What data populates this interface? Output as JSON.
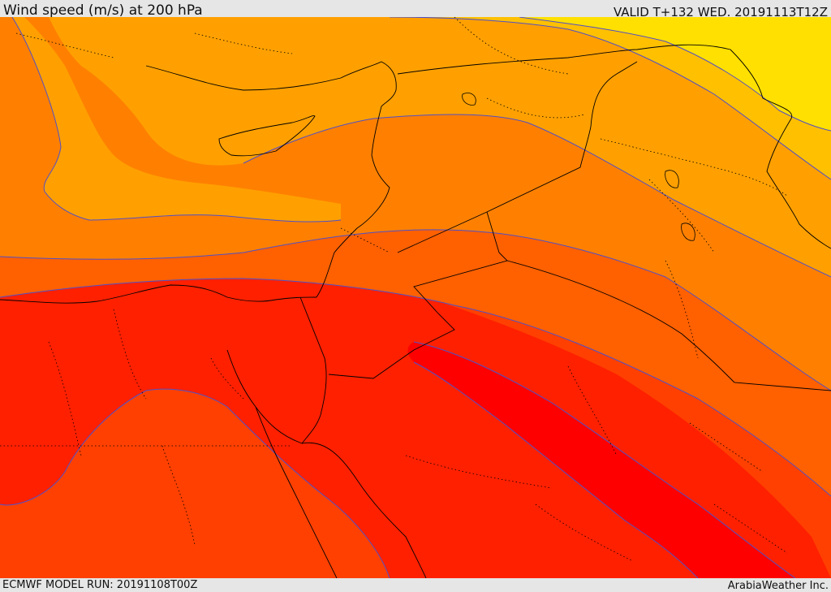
{
  "header": {
    "title": "Wind speed (m/s) at 200 hPa",
    "valid_time": "VALID T+132 WED. 20191113T12Z"
  },
  "footer": {
    "model_run": "ECMWF MODEL RUN: 20191108T00Z",
    "credit": "ArabiaWeather Inc."
  },
  "map": {
    "field": "wind-speed",
    "pressure_level_hpa": 200,
    "contour_line_color": "#5050c8",
    "border_color": "#000000",
    "bands": [
      {
        "id": "band-1",
        "color": "#ffe000"
      },
      {
        "id": "band-2",
        "color": "#ffc000"
      },
      {
        "id": "band-3",
        "color": "#ffa000"
      },
      {
        "id": "band-4",
        "color": "#ff8000"
      },
      {
        "id": "band-5",
        "color": "#ff6000"
      },
      {
        "id": "band-6",
        "color": "#ff4000"
      },
      {
        "id": "band-7",
        "color": "#ff2000"
      },
      {
        "id": "band-8",
        "color": "#ff0000"
      }
    ]
  }
}
